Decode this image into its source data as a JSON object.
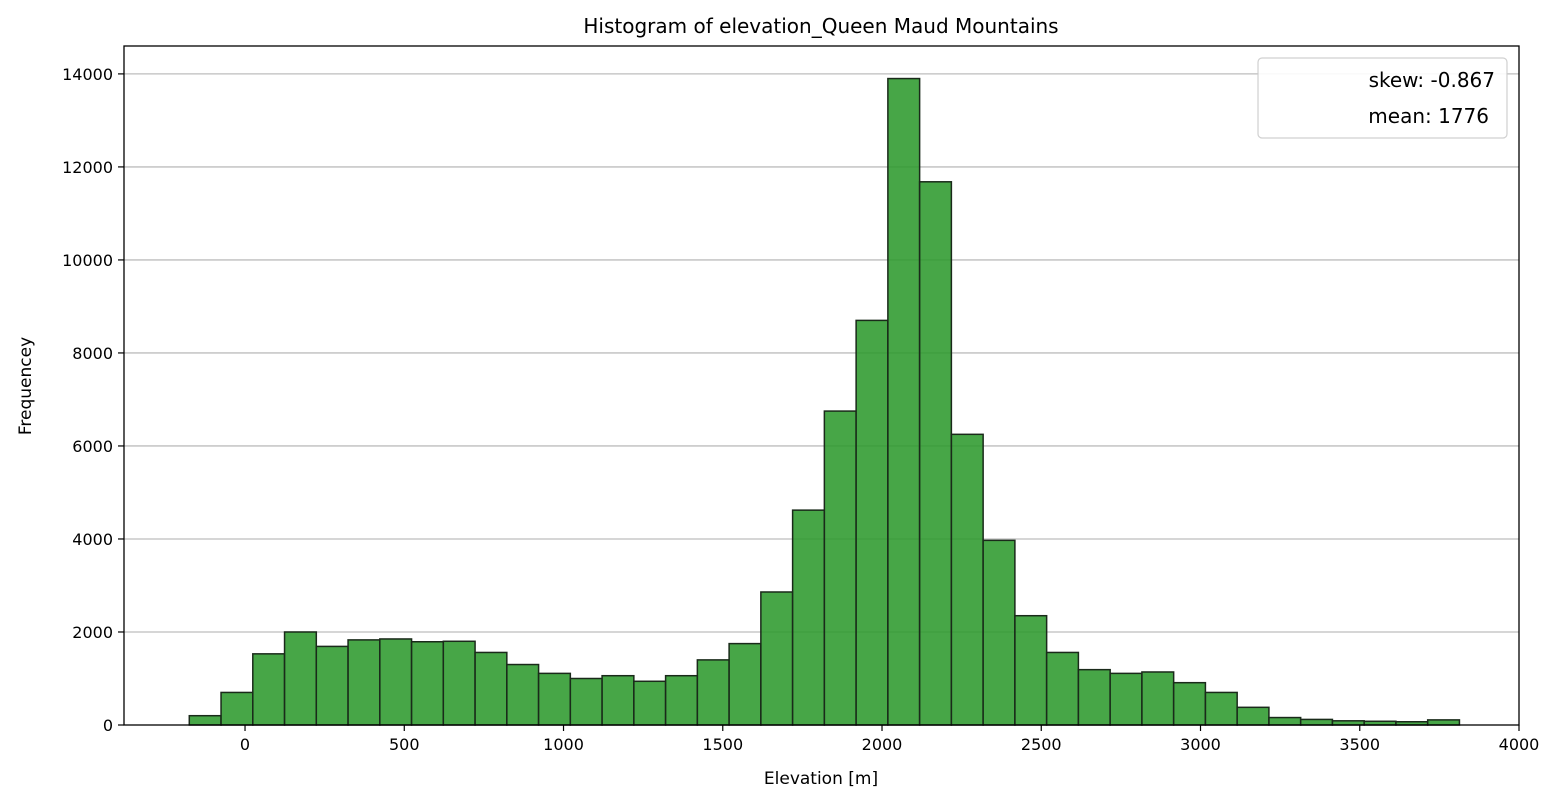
{
  "chart_data": {
    "type": "bar",
    "title": "Histogram of elevation_Queen Maud Mountains",
    "xlabel": "Elevation [m]",
    "ylabel": "Frequencey",
    "xlim": [
      -380,
      4000
    ],
    "ylim": [
      0,
      14600
    ],
    "x_ticks": [
      0,
      500,
      1000,
      1500,
      2000,
      2500,
      3000,
      3500,
      4000
    ],
    "y_ticks": [
      0,
      2000,
      4000,
      6000,
      8000,
      10000,
      12000,
      14000
    ],
    "grid": "horizontal",
    "bin_start": -175,
    "bin_width": 99.7,
    "values": [
      200,
      700,
      1530,
      2000,
      1690,
      1830,
      1850,
      1790,
      1800,
      1560,
      1300,
      1110,
      1000,
      1060,
      940,
      1060,
      1400,
      1750,
      2860,
      4620,
      6750,
      8700,
      13900,
      11680,
      6250,
      3970,
      2350,
      1560,
      1190,
      1110,
      1140,
      910,
      700,
      380,
      160,
      120,
      90,
      80,
      70,
      110
    ],
    "legend": {
      "position": "top-right",
      "entries": [
        "skew: -0.867",
        "mean: 1776"
      ]
    },
    "colors": {
      "bar_fill": "#2e9a2e",
      "bar_edge": "#1a2a1a",
      "grid": "#bdbdbd"
    }
  }
}
